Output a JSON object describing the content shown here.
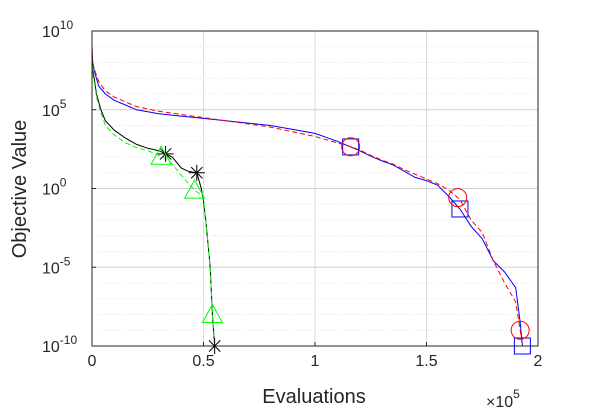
{
  "chart_data": {
    "type": "line",
    "title": "",
    "xlabel": "Evaluations",
    "ylabel": "Objective Value",
    "x_multiplier_label": {
      "base": "×10",
      "exp": "5"
    },
    "xlim": [
      0,
      2
    ],
    "ylim_log10": [
      -10,
      10
    ],
    "y_scale": "log",
    "grid": true,
    "minor_grid_y": true,
    "legend": "none",
    "x_ticks": [
      "0",
      "0.5",
      "1",
      "1.5",
      "2"
    ],
    "x_tick_values": [
      0,
      0.5,
      1,
      1.5,
      2
    ],
    "y_ticks": [
      {
        "base": "10",
        "exp": "10",
        "value": 10
      },
      {
        "base": "10",
        "exp": "5",
        "value": 5
      },
      {
        "base": "10",
        "exp": "0",
        "value": 0
      },
      {
        "base": "10",
        "exp": "-5",
        "value": -5
      },
      {
        "base": "10",
        "exp": "-10",
        "value": -10
      }
    ],
    "series": [
      {
        "color": "#0000ff",
        "dash": "solid",
        "marker": "square",
        "x": [
          0,
          0.003,
          0.01,
          0.03,
          0.06,
          0.1,
          0.15,
          0.2,
          0.3,
          0.4,
          0.5,
          0.6,
          0.7,
          0.8,
          0.9,
          1.0,
          1.05,
          1.1,
          1.15,
          1.2,
          1.25,
          1.3,
          1.35,
          1.4,
          1.45,
          1.5,
          1.55,
          1.6,
          1.65,
          1.7,
          1.75,
          1.8,
          1.85,
          1.9,
          1.92,
          1.93
        ],
        "y_log10": [
          9.0,
          8.0,
          7.5,
          6.5,
          6.0,
          5.6,
          5.3,
          5.0,
          4.75,
          4.6,
          4.45,
          4.3,
          4.15,
          4.0,
          3.75,
          3.5,
          3.25,
          3.0,
          2.7,
          2.4,
          2.05,
          1.75,
          1.5,
          1.1,
          0.7,
          0.5,
          0.2,
          -0.5,
          -1.3,
          -2.4,
          -3.2,
          -4.6,
          -5.3,
          -6.3,
          -8.5,
          -10.0
        ],
        "markers_at_x": [
          1.16,
          1.65,
          1.93
        ]
      },
      {
        "color": "#ff0000",
        "dash": "dashed",
        "marker": "circle",
        "x": [
          0,
          0.003,
          0.01,
          0.03,
          0.06,
          0.1,
          0.15,
          0.2,
          0.3,
          0.4,
          0.5,
          0.6,
          0.7,
          0.8,
          0.9,
          1.0,
          1.05,
          1.1,
          1.15,
          1.2,
          1.25,
          1.3,
          1.35,
          1.4,
          1.45,
          1.5,
          1.55,
          1.6,
          1.65,
          1.7,
          1.75,
          1.8,
          1.85,
          1.9,
          1.92,
          1.93
        ],
        "y_log10": [
          9.0,
          8.0,
          7.6,
          6.8,
          6.2,
          5.8,
          5.5,
          5.2,
          4.9,
          4.7,
          4.5,
          4.3,
          4.1,
          3.9,
          3.6,
          3.3,
          3.1,
          2.9,
          2.7,
          2.45,
          2.1,
          1.8,
          1.55,
          1.2,
          0.9,
          0.6,
          0.3,
          -0.1,
          -0.7,
          -2.0,
          -2.8,
          -4.6,
          -6.0,
          -7.2,
          -9.0,
          -10.0
        ],
        "markers_at_x": [
          1.16,
          1.64,
          1.92
        ]
      },
      {
        "color": "#000000",
        "dash": "solid",
        "marker": "asterisk",
        "x": [
          0,
          0.003,
          0.01,
          0.02,
          0.04,
          0.06,
          0.1,
          0.15,
          0.2,
          0.25,
          0.3,
          0.33,
          0.36,
          0.4,
          0.43,
          0.47,
          0.49,
          0.5,
          0.51,
          0.52,
          0.53,
          0.535,
          0.54,
          0.545,
          0.55
        ],
        "y_log10": [
          8.5,
          7.5,
          7.0,
          6.0,
          5.0,
          4.3,
          3.7,
          3.2,
          2.8,
          2.55,
          2.4,
          2.2,
          2.0,
          1.3,
          1.1,
          1.0,
          0.0,
          -0.8,
          -2.0,
          -3.5,
          -5.0,
          -6.5,
          -8.0,
          -9.0,
          -10.0
        ],
        "markers_at_x": [
          0.33,
          0.47,
          0.55
        ]
      },
      {
        "color": "#00ff00",
        "dash": "dashed",
        "marker": "triangle",
        "x": [
          0,
          0.003,
          0.01,
          0.02,
          0.04,
          0.06,
          0.1,
          0.15,
          0.2,
          0.25,
          0.3,
          0.32,
          0.35,
          0.38,
          0.42,
          0.46,
          0.48,
          0.5,
          0.51,
          0.52,
          0.53,
          0.535,
          0.54,
          0.545,
          0.55
        ],
        "y_log10": [
          8.3,
          7.2,
          6.8,
          5.8,
          4.8,
          4.0,
          3.4,
          2.9,
          2.6,
          2.4,
          2.1,
          2.0,
          1.7,
          1.2,
          0.5,
          -0.1,
          -0.3,
          -0.6,
          -2.0,
          -3.5,
          -5.0,
          -6.5,
          -8.0,
          -9.0,
          -10.0
        ],
        "markers_at_x": [
          0.31,
          0.46,
          0.54
        ]
      }
    ]
  }
}
